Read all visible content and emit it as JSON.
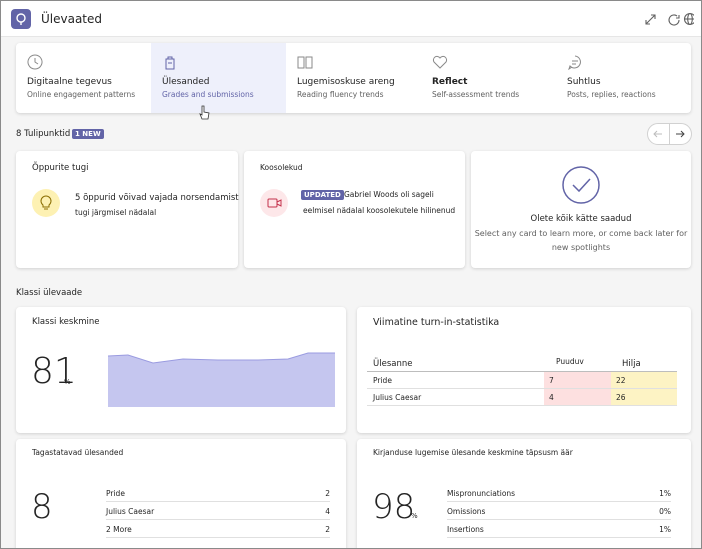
{
  "header": {
    "title": "Ülevaated"
  },
  "tabs": [
    {
      "title": "Digitaalne tegevus",
      "subtitle": "Online engagement patterns"
    },
    {
      "title": "Ülesanded",
      "subtitle": "Grades and submissions"
    },
    {
      "title": "Lugemisoskuse areng",
      "subtitle": "Reading fluency trends"
    },
    {
      "title": "Reflect",
      "subtitle": "Self-assessment trends"
    },
    {
      "title": "Suhtlus",
      "subtitle": "Posts, replies, reactions"
    }
  ],
  "spotlights": {
    "label": "8 Tulipunktid",
    "badge": "1 NEW",
    "cards": [
      {
        "title": "Õppurite tugi",
        "lines": [
          "5 õppurid võivad vajada norsendamist",
          "tugi järgmisel nädalal"
        ]
      },
      {
        "title": "Koosolekud",
        "badge": "UPDATED",
        "lines": [
          "Gabriel Woods oli sageli",
          "eelmisel nädalal koosolekutele hilinenud"
        ]
      },
      {
        "title": "Olete kõik kätte saadud",
        "lines": [
          "Select any card to learn more, or come back later for",
          "new spotlights"
        ]
      }
    ]
  },
  "overview": {
    "label": "Klassi ülevaade",
    "class_average": {
      "title": "Klassi keskmine",
      "value": 81,
      "unit": "%"
    },
    "turn_in": {
      "title": "Viimatine turn-in-statistika",
      "columns": [
        "Ülesanne",
        "Puuduv",
        "Hilja"
      ],
      "rows": [
        [
          "Pride",
          7,
          22
        ],
        [
          "Julius Caesar",
          4,
          26
        ]
      ]
    },
    "returnable": {
      "title": "Tagastatavad ülesanded",
      "value": 8,
      "rows": [
        [
          "Pride",
          2
        ],
        [
          "Julius Caesar",
          4
        ],
        [
          "2 More",
          2
        ]
      ]
    },
    "accuracy": {
      "title": "Kirjanduse lugemise ülesande keskmine täpsusm äär",
      "value": 98,
      "unit": "%",
      "rows": [
        [
          "Mispronunciations",
          "1%"
        ],
        [
          "Omissions",
          "0%"
        ],
        [
          "Insertions",
          "1%"
        ]
      ]
    }
  }
}
